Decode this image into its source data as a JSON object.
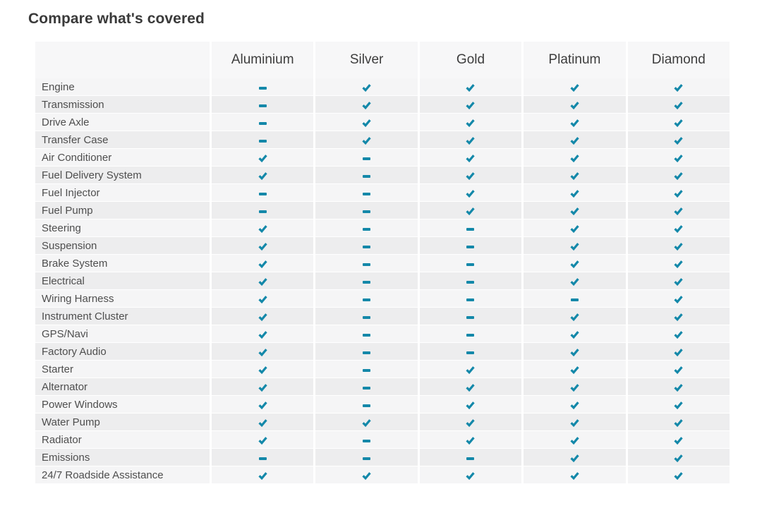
{
  "title": "Compare what's covered",
  "colors": {
    "accent": "#1388a9",
    "header_bg": "#f7f7f8",
    "row_odd": "#f5f5f6",
    "row_even": "#ededee",
    "title_text": "#3a3a3a",
    "header_text": "#3d3d3d",
    "label_text": "#4e4e4e"
  },
  "icons": {
    "check": "check-icon",
    "dash": "dash-icon"
  },
  "chart_data": {
    "type": "table",
    "title": "Compare what's covered",
    "columns": [
      "Aluminium",
      "Silver",
      "Gold",
      "Platinum",
      "Diamond"
    ],
    "value_legend": {
      "check": "covered",
      "dash": "not covered"
    },
    "rows": [
      {
        "feature": "Engine",
        "values": [
          "dash",
          "check",
          "check",
          "check",
          "check"
        ]
      },
      {
        "feature": "Transmission",
        "values": [
          "dash",
          "check",
          "check",
          "check",
          "check"
        ]
      },
      {
        "feature": "Drive Axle",
        "values": [
          "dash",
          "check",
          "check",
          "check",
          "check"
        ]
      },
      {
        "feature": "Transfer Case",
        "values": [
          "dash",
          "check",
          "check",
          "check",
          "check"
        ]
      },
      {
        "feature": "Air Conditioner",
        "values": [
          "check",
          "dash",
          "check",
          "check",
          "check"
        ]
      },
      {
        "feature": "Fuel Delivery System",
        "values": [
          "check",
          "dash",
          "check",
          "check",
          "check"
        ]
      },
      {
        "feature": "Fuel Injector",
        "values": [
          "dash",
          "dash",
          "check",
          "check",
          "check"
        ]
      },
      {
        "feature": "Fuel Pump",
        "values": [
          "dash",
          "dash",
          "check",
          "check",
          "check"
        ]
      },
      {
        "feature": "Steering",
        "values": [
          "check",
          "dash",
          "dash",
          "check",
          "check"
        ]
      },
      {
        "feature": "Suspension",
        "values": [
          "check",
          "dash",
          "dash",
          "check",
          "check"
        ]
      },
      {
        "feature": "Brake System",
        "values": [
          "check",
          "dash",
          "dash",
          "check",
          "check"
        ]
      },
      {
        "feature": "Electrical",
        "values": [
          "check",
          "dash",
          "dash",
          "check",
          "check"
        ]
      },
      {
        "feature": "Wiring Harness",
        "values": [
          "check",
          "dash",
          "dash",
          "dash",
          "check"
        ]
      },
      {
        "feature": "Instrument Cluster",
        "values": [
          "check",
          "dash",
          "dash",
          "check",
          "check"
        ]
      },
      {
        "feature": "GPS/Navi",
        "values": [
          "check",
          "dash",
          "dash",
          "check",
          "check"
        ]
      },
      {
        "feature": "Factory Audio",
        "values": [
          "check",
          "dash",
          "dash",
          "check",
          "check"
        ]
      },
      {
        "feature": "Starter",
        "values": [
          "check",
          "dash",
          "check",
          "check",
          "check"
        ]
      },
      {
        "feature": "Alternator",
        "values": [
          "check",
          "dash",
          "check",
          "check",
          "check"
        ]
      },
      {
        "feature": "Power Windows",
        "values": [
          "check",
          "dash",
          "check",
          "check",
          "check"
        ]
      },
      {
        "feature": "Water Pump",
        "values": [
          "check",
          "check",
          "check",
          "check",
          "check"
        ]
      },
      {
        "feature": "Radiator",
        "values": [
          "check",
          "dash",
          "check",
          "check",
          "check"
        ]
      },
      {
        "feature": "Emissions",
        "values": [
          "dash",
          "dash",
          "dash",
          "check",
          "check"
        ]
      },
      {
        "feature": "24/7 Roadside Assistance",
        "values": [
          "check",
          "check",
          "check",
          "check",
          "check"
        ]
      }
    ]
  }
}
